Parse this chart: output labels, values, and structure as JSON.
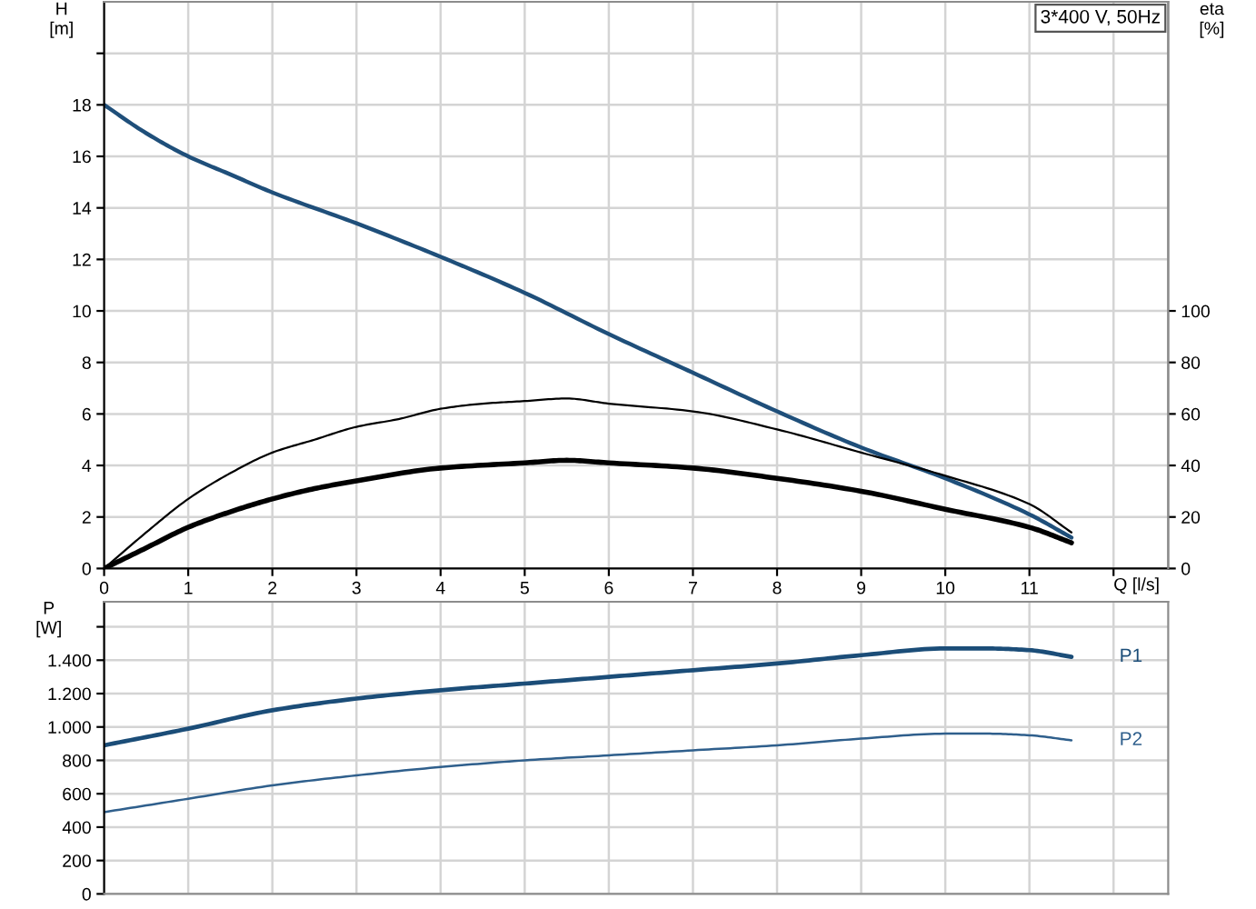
{
  "chart_data": [
    {
      "type": "line",
      "title": "3*400 V, 50Hz",
      "xlabel": "Q [l/s]",
      "ylabel": "H\n[m]",
      "y2label": "eta\n[%]",
      "xlim": [
        0,
        12.65
      ],
      "xticks": [
        0,
        1,
        2,
        3,
        4,
        5,
        6,
        7,
        8,
        9,
        10,
        11,
        {
          "value": 12,
          "label": null
        }
      ],
      "ylim": [
        0,
        22
      ],
      "yticks": [
        0,
        2,
        4,
        6,
        8,
        10,
        12,
        14,
        16,
        18,
        {
          "value": 20,
          "label": null
        }
      ],
      "y2lim": [
        0,
        220
      ],
      "y2ticks": [
        0,
        20,
        40,
        60,
        80,
        100
      ],
      "grid": true,
      "series": [
        {
          "color": "#1f4f7a",
          "x": [
            0,
            0.5,
            1,
            1.5,
            2,
            3,
            4,
            5,
            6,
            7,
            8,
            9,
            10,
            11,
            11.5
          ],
          "values": [
            18.0,
            16.9,
            16.0,
            15.3,
            14.6,
            13.4,
            12.1,
            10.7,
            9.1,
            7.6,
            6.1,
            4.7,
            3.5,
            2.1,
            1.2
          ]
        },
        {
          "color": "#000000",
          "axis": "y2",
          "x": [
            0,
            0.5,
            1,
            1.5,
            2,
            2.5,
            3,
            3.5,
            4,
            4.5,
            5,
            5.5,
            6,
            7,
            8,
            9,
            10,
            11,
            11.5
          ],
          "values": [
            0,
            14,
            27,
            37,
            45,
            50,
            55,
            58,
            62,
            64,
            65,
            66,
            64,
            61,
            54,
            45,
            36,
            25,
            14
          ]
        },
        {
          "color": "#000000",
          "axis": "y2",
          "x": [
            0,
            0.5,
            1,
            1.5,
            2,
            2.5,
            3,
            4,
            5,
            5.5,
            6,
            7,
            8,
            9,
            10,
            11,
            11.5
          ],
          "values": [
            0,
            8,
            16,
            22,
            27,
            31,
            34,
            39,
            41,
            42,
            41,
            39,
            35,
            30,
            23,
            16,
            10
          ]
        }
      ]
    },
    {
      "type": "line",
      "ylabel": "P\n[W]",
      "tick_labels": "y",
      "xlim": [
        0,
        12.65
      ],
      "xticks": [
        0,
        1,
        2,
        3,
        4,
        5,
        6,
        7,
        8,
        9,
        10,
        11,
        12
      ],
      "ylim": [
        0,
        1750
      ],
      "yticks": [
        0,
        200,
        400,
        600,
        800,
        {
          "value": 1000,
          "label": "1.000"
        },
        {
          "value": 1200,
          "label": "1.200"
        },
        {
          "value": 1400,
          "label": "1.400"
        },
        {
          "value": 1600,
          "label": null
        }
      ],
      "grid": true,
      "series": [
        {
          "name": "P1",
          "color": "#1b4d78",
          "x": [
            0,
            1,
            2,
            3,
            4,
            5,
            6,
            7,
            8,
            9,
            10,
            10.5,
            11,
            11.5
          ],
          "values": [
            890,
            990,
            1100,
            1170,
            1220,
            1260,
            1300,
            1340,
            1380,
            1430,
            1470,
            1470,
            1460,
            1420
          ]
        },
        {
          "name": "P2",
          "color": "#2f5f8c",
          "x": [
            0,
            1,
            2,
            3,
            4,
            5,
            6,
            7,
            8,
            9,
            10,
            10.5,
            11,
            11.5
          ],
          "values": [
            490,
            570,
            650,
            710,
            760,
            800,
            830,
            860,
            890,
            930,
            960,
            960,
            950,
            920
          ]
        }
      ]
    }
  ]
}
